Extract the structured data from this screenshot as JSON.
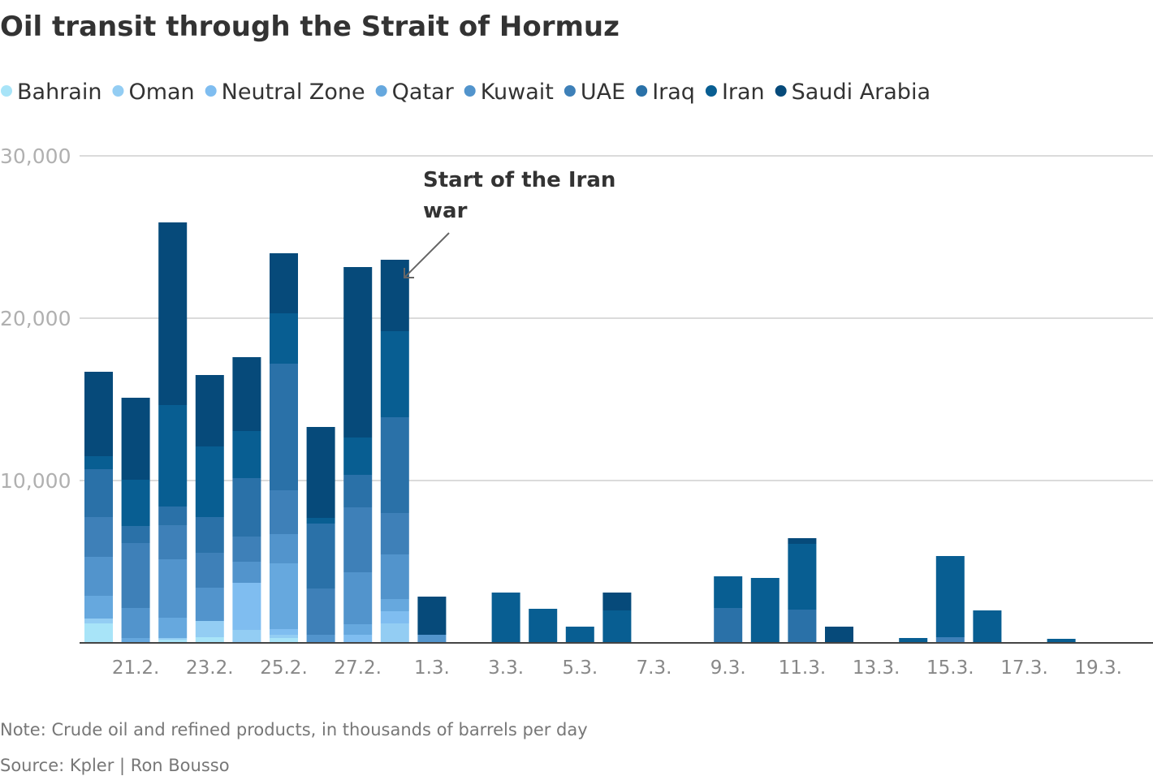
{
  "chart_data": {
    "type": "bar",
    "stacked": true,
    "title": "Oil transit through the Strait of Hormuz",
    "xlabel": "",
    "ylabel": "",
    "ylim": [
      0,
      30000
    ],
    "yticks": [
      10000,
      20000,
      30000
    ],
    "ytick_labels": [
      "10,000",
      "20,000",
      "30,000"
    ],
    "grid": true,
    "legend_placement": "top",
    "categories": [
      "20.2.",
      "21.2.",
      "22.2.",
      "23.2.",
      "24.2.",
      "25.2.",
      "26.2.",
      "27.2.",
      "28.2.",
      "1.3.",
      "2.3.",
      "3.3.",
      "4.3.",
      "5.3.",
      "6.3.",
      "7.3.",
      "8.3.",
      "9.3.",
      "10.3.",
      "11.3.",
      "12.3.",
      "13.3.",
      "14.3.",
      "15.3.",
      "16.3.",
      "17.3.",
      "18.3.",
      "19.3."
    ],
    "xtick_labels": [
      "21.2.",
      "23.2.",
      "25.2.",
      "27.2.",
      "1.3.",
      "3.3.",
      "5.3.",
      "7.3.",
      "9.3.",
      "11.3.",
      "13.3.",
      "15.3.",
      "17.3.",
      "19.3."
    ],
    "series": [
      {
        "name": "Bahrain",
        "color": "#a8e4f8",
        "values": [
          1200,
          0,
          200,
          350,
          0,
          300,
          0,
          0,
          0,
          0,
          0,
          0,
          0,
          0,
          0,
          0,
          0,
          0,
          0,
          0,
          0,
          0,
          0,
          0,
          0,
          0,
          0,
          0
        ]
      },
      {
        "name": "Oman",
        "color": "#93cdf3",
        "values": [
          300,
          0,
          100,
          1000,
          800,
          200,
          0,
          0,
          1200,
          0,
          0,
          0,
          0,
          0,
          0,
          0,
          0,
          0,
          0,
          0,
          0,
          0,
          0,
          0,
          0,
          0,
          0,
          0
        ]
      },
      {
        "name": "Neutral Zone",
        "color": "#7fbdf0",
        "values": [
          0,
          0,
          0,
          0,
          2900,
          350,
          0,
          500,
          750,
          0,
          0,
          0,
          0,
          0,
          0,
          0,
          0,
          0,
          0,
          0,
          0,
          0,
          0,
          0,
          0,
          0,
          0,
          0
        ]
      },
      {
        "name": "Qatar",
        "color": "#66a8de",
        "values": [
          1400,
          300,
          1250,
          0,
          0,
          4050,
          0,
          650,
          750,
          0,
          0,
          0,
          0,
          0,
          0,
          0,
          0,
          0,
          0,
          0,
          0,
          0,
          0,
          0,
          0,
          0,
          0,
          0
        ]
      },
      {
        "name": "Kuwait",
        "color": "#5294cc",
        "values": [
          2400,
          1850,
          3600,
          2050,
          1300,
          1800,
          500,
          3200,
          2750,
          500,
          0,
          0,
          0,
          0,
          0,
          0,
          0,
          0,
          0,
          0,
          0,
          0,
          0,
          0,
          0,
          0,
          0,
          0
        ]
      },
      {
        "name": "UAE",
        "color": "#3e80b8",
        "values": [
          2450,
          4000,
          2100,
          2150,
          1550,
          2700,
          2850,
          4000,
          2550,
          0,
          0,
          0,
          0,
          0,
          0,
          0,
          0,
          0,
          0,
          0,
          0,
          0,
          0,
          350,
          0,
          0,
          0,
          0
        ]
      },
      {
        "name": "Iraq",
        "color": "#2a71a8",
        "values": [
          2950,
          1050,
          1150,
          2200,
          3600,
          7800,
          4000,
          2000,
          5900,
          0,
          0,
          0,
          0,
          0,
          0,
          0,
          0,
          2150,
          0,
          2050,
          0,
          0,
          0,
          0,
          0,
          0,
          0,
          0
        ]
      },
      {
        "name": "Iran",
        "color": "#085e92",
        "values": [
          800,
          2850,
          6250,
          4350,
          2900,
          3100,
          350,
          2300,
          5300,
          0,
          0,
          3100,
          2100,
          1000,
          2000,
          0,
          0,
          1950,
          4000,
          4050,
          0,
          0,
          300,
          5000,
          2000,
          0,
          250,
          0
        ]
      },
      {
        "name": "Saudi Arabia",
        "color": "#064a7a",
        "values": [
          5200,
          5050,
          11250,
          4400,
          4550,
          3700,
          5600,
          10500,
          4400,
          2350,
          0,
          0,
          0,
          0,
          1100,
          0,
          0,
          0,
          0,
          350,
          1000,
          0,
          0,
          0,
          0,
          0,
          0,
          0
        ]
      }
    ],
    "annotations": [
      {
        "text_lines": [
          "Start of the Iran",
          "war"
        ],
        "points_to": "28.2."
      }
    ]
  },
  "footer": {
    "note": "Note: Crude oil and refined products, in thousands of barrels per day",
    "source": "Source: Kpler | Ron Bousso"
  }
}
